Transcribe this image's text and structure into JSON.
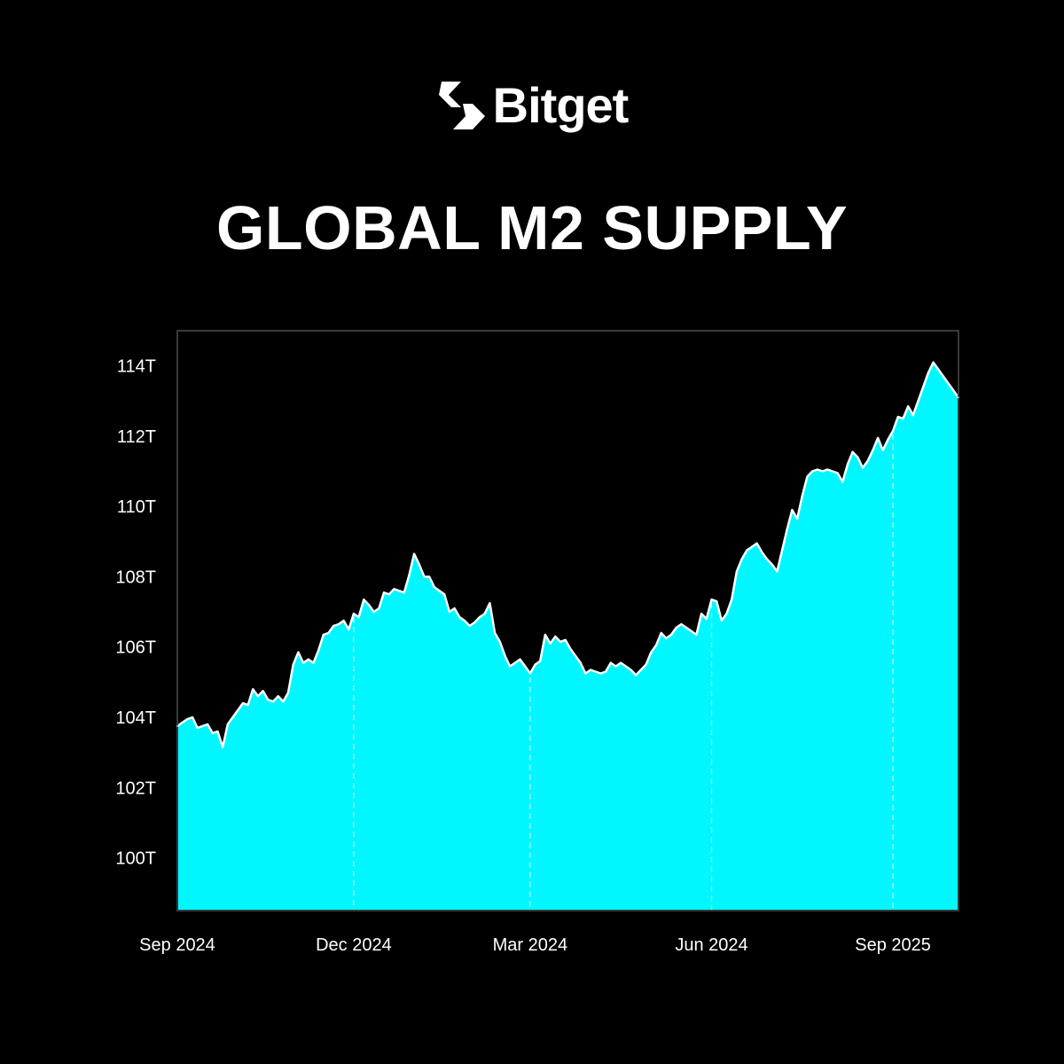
{
  "brand": {
    "name": "Bitget",
    "logo_icon": "bitget-arrow-logo"
  },
  "title": "GLOBAL M2 SUPPLY",
  "colors": {
    "background": "#000000",
    "area_fill": "#00f7ff",
    "area_outline": "#ffffff",
    "frame": "#3a3a3a",
    "text": "#ffffff"
  },
  "chart_data": {
    "type": "area",
    "title": "GLOBAL M2 SUPPLY",
    "xlabel": "",
    "ylabel": "",
    "ylim": [
      98.5,
      115
    ],
    "y_ticks": [
      {
        "value": 114,
        "label": "114T"
      },
      {
        "value": 112,
        "label": "112T"
      },
      {
        "value": 110,
        "label": "110T"
      },
      {
        "value": 108,
        "label": "108T"
      },
      {
        "value": 106,
        "label": "106T"
      },
      {
        "value": 104,
        "label": "104T"
      },
      {
        "value": 102,
        "label": "102T"
      },
      {
        "value": 100,
        "label": "100T"
      }
    ],
    "x_ticks": [
      {
        "index": 0,
        "label": "Sep 2024"
      },
      {
        "index": 35,
        "label": "Dec 2024"
      },
      {
        "index": 70,
        "label": "Mar 2024"
      },
      {
        "index": 106,
        "label": "Jun 2024"
      },
      {
        "index": 142,
        "label": "Sep 2025"
      }
    ],
    "grid": false,
    "vertical_dashed_lines_at": [
      35,
      70,
      106,
      142
    ],
    "series": [
      {
        "values": [
          103.75,
          103.85,
          103.95,
          104.0,
          103.7,
          103.75,
          103.8,
          103.55,
          103.6,
          103.15,
          103.8,
          104.0,
          104.2,
          104.4,
          104.35,
          104.8,
          104.6,
          104.75,
          104.5,
          104.45,
          104.6,
          104.45,
          104.7,
          105.5,
          105.85,
          105.55,
          105.65,
          105.55,
          105.9,
          106.35,
          106.4,
          106.6,
          106.65,
          106.75,
          106.5,
          106.95,
          106.85,
          107.35,
          107.2,
          107.0,
          107.1,
          107.55,
          107.5,
          107.65,
          107.6,
          107.55,
          108.05,
          108.65,
          108.35,
          108.0,
          108.0,
          107.7,
          107.6,
          107.5,
          107.0,
          107.1,
          106.85,
          106.75,
          106.6,
          106.7,
          106.85,
          106.95,
          107.25,
          106.4,
          106.15,
          105.75,
          105.45,
          105.55,
          105.65,
          105.45,
          105.25,
          105.5,
          105.6,
          106.35,
          106.1,
          106.3,
          106.15,
          106.2,
          105.95,
          105.75,
          105.55,
          105.25,
          105.35,
          105.3,
          105.25,
          105.3,
          105.55,
          105.45,
          105.55,
          105.45,
          105.35,
          105.2,
          105.35,
          105.5,
          105.85,
          106.05,
          106.4,
          106.25,
          106.35,
          106.55,
          106.65,
          106.55,
          106.45,
          106.35,
          106.95,
          106.8,
          107.35,
          107.3,
          106.75,
          106.95,
          107.35,
          108.15,
          108.5,
          108.75,
          108.85,
          108.95,
          108.7,
          108.5,
          108.35,
          108.15,
          108.75,
          109.35,
          109.9,
          109.65,
          110.3,
          110.85,
          111.0,
          111.05,
          111.0,
          111.05,
          111.0,
          110.95,
          110.7,
          111.2,
          111.55,
          111.4,
          111.1,
          111.3,
          111.6,
          111.95,
          111.6,
          111.9,
          112.15,
          112.55,
          112.5,
          112.85,
          112.6,
          113.0,
          113.4,
          113.8,
          114.1,
          113.9,
          113.7,
          113.5,
          113.3,
          113.1
        ]
      }
    ]
  }
}
